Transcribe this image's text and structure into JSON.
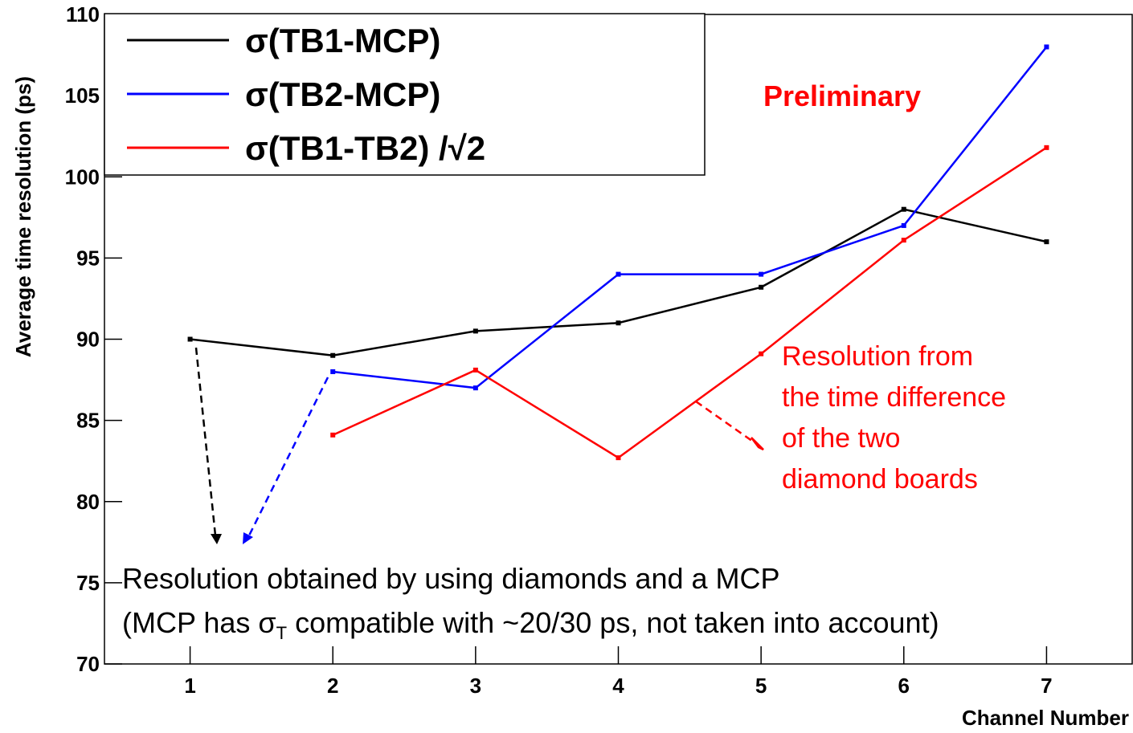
{
  "chart_data": {
    "type": "line",
    "xlabel": "Channel Number",
    "ylabel": "Average time resolution (ps)",
    "x": [
      1,
      2,
      3,
      4,
      5,
      6,
      7
    ],
    "series": [
      {
        "name": "σ(TB1-MCP)",
        "color": "#000000",
        "values": [
          90,
          89,
          90.5,
          91,
          93.2,
          98,
          96
        ]
      },
      {
        "name": "σ(TB2-MCP)",
        "color": "#0000ff",
        "values": [
          null,
          88,
          87,
          94,
          94,
          97,
          108
        ]
      },
      {
        "name": "σ(TB1-TB2) /√2",
        "color": "#ff0000",
        "values": [
          null,
          84.1,
          88.1,
          82.7,
          89.1,
          96.1,
          101.8
        ]
      }
    ],
    "xlim": [
      0.4,
      7.6
    ],
    "xticks": [
      1,
      2,
      3,
      4,
      5,
      6,
      7
    ],
    "ylim": [
      70,
      110
    ],
    "yticks": [
      70,
      75,
      80,
      85,
      90,
      95,
      100,
      105,
      110
    ],
    "legend": "upper left",
    "annotations": {
      "preliminary": "Preliminary",
      "red_note": [
        "Resolution from",
        "the time difference",
        "of the two",
        "diamond boards"
      ],
      "bottom_note_1": "Resolution obtained by using diamonds and a MCP",
      "bottom_note_2": [
        "(MCP has σ",
        "T",
        " compatible with ~20/30 ps, not taken into account)"
      ]
    }
  }
}
